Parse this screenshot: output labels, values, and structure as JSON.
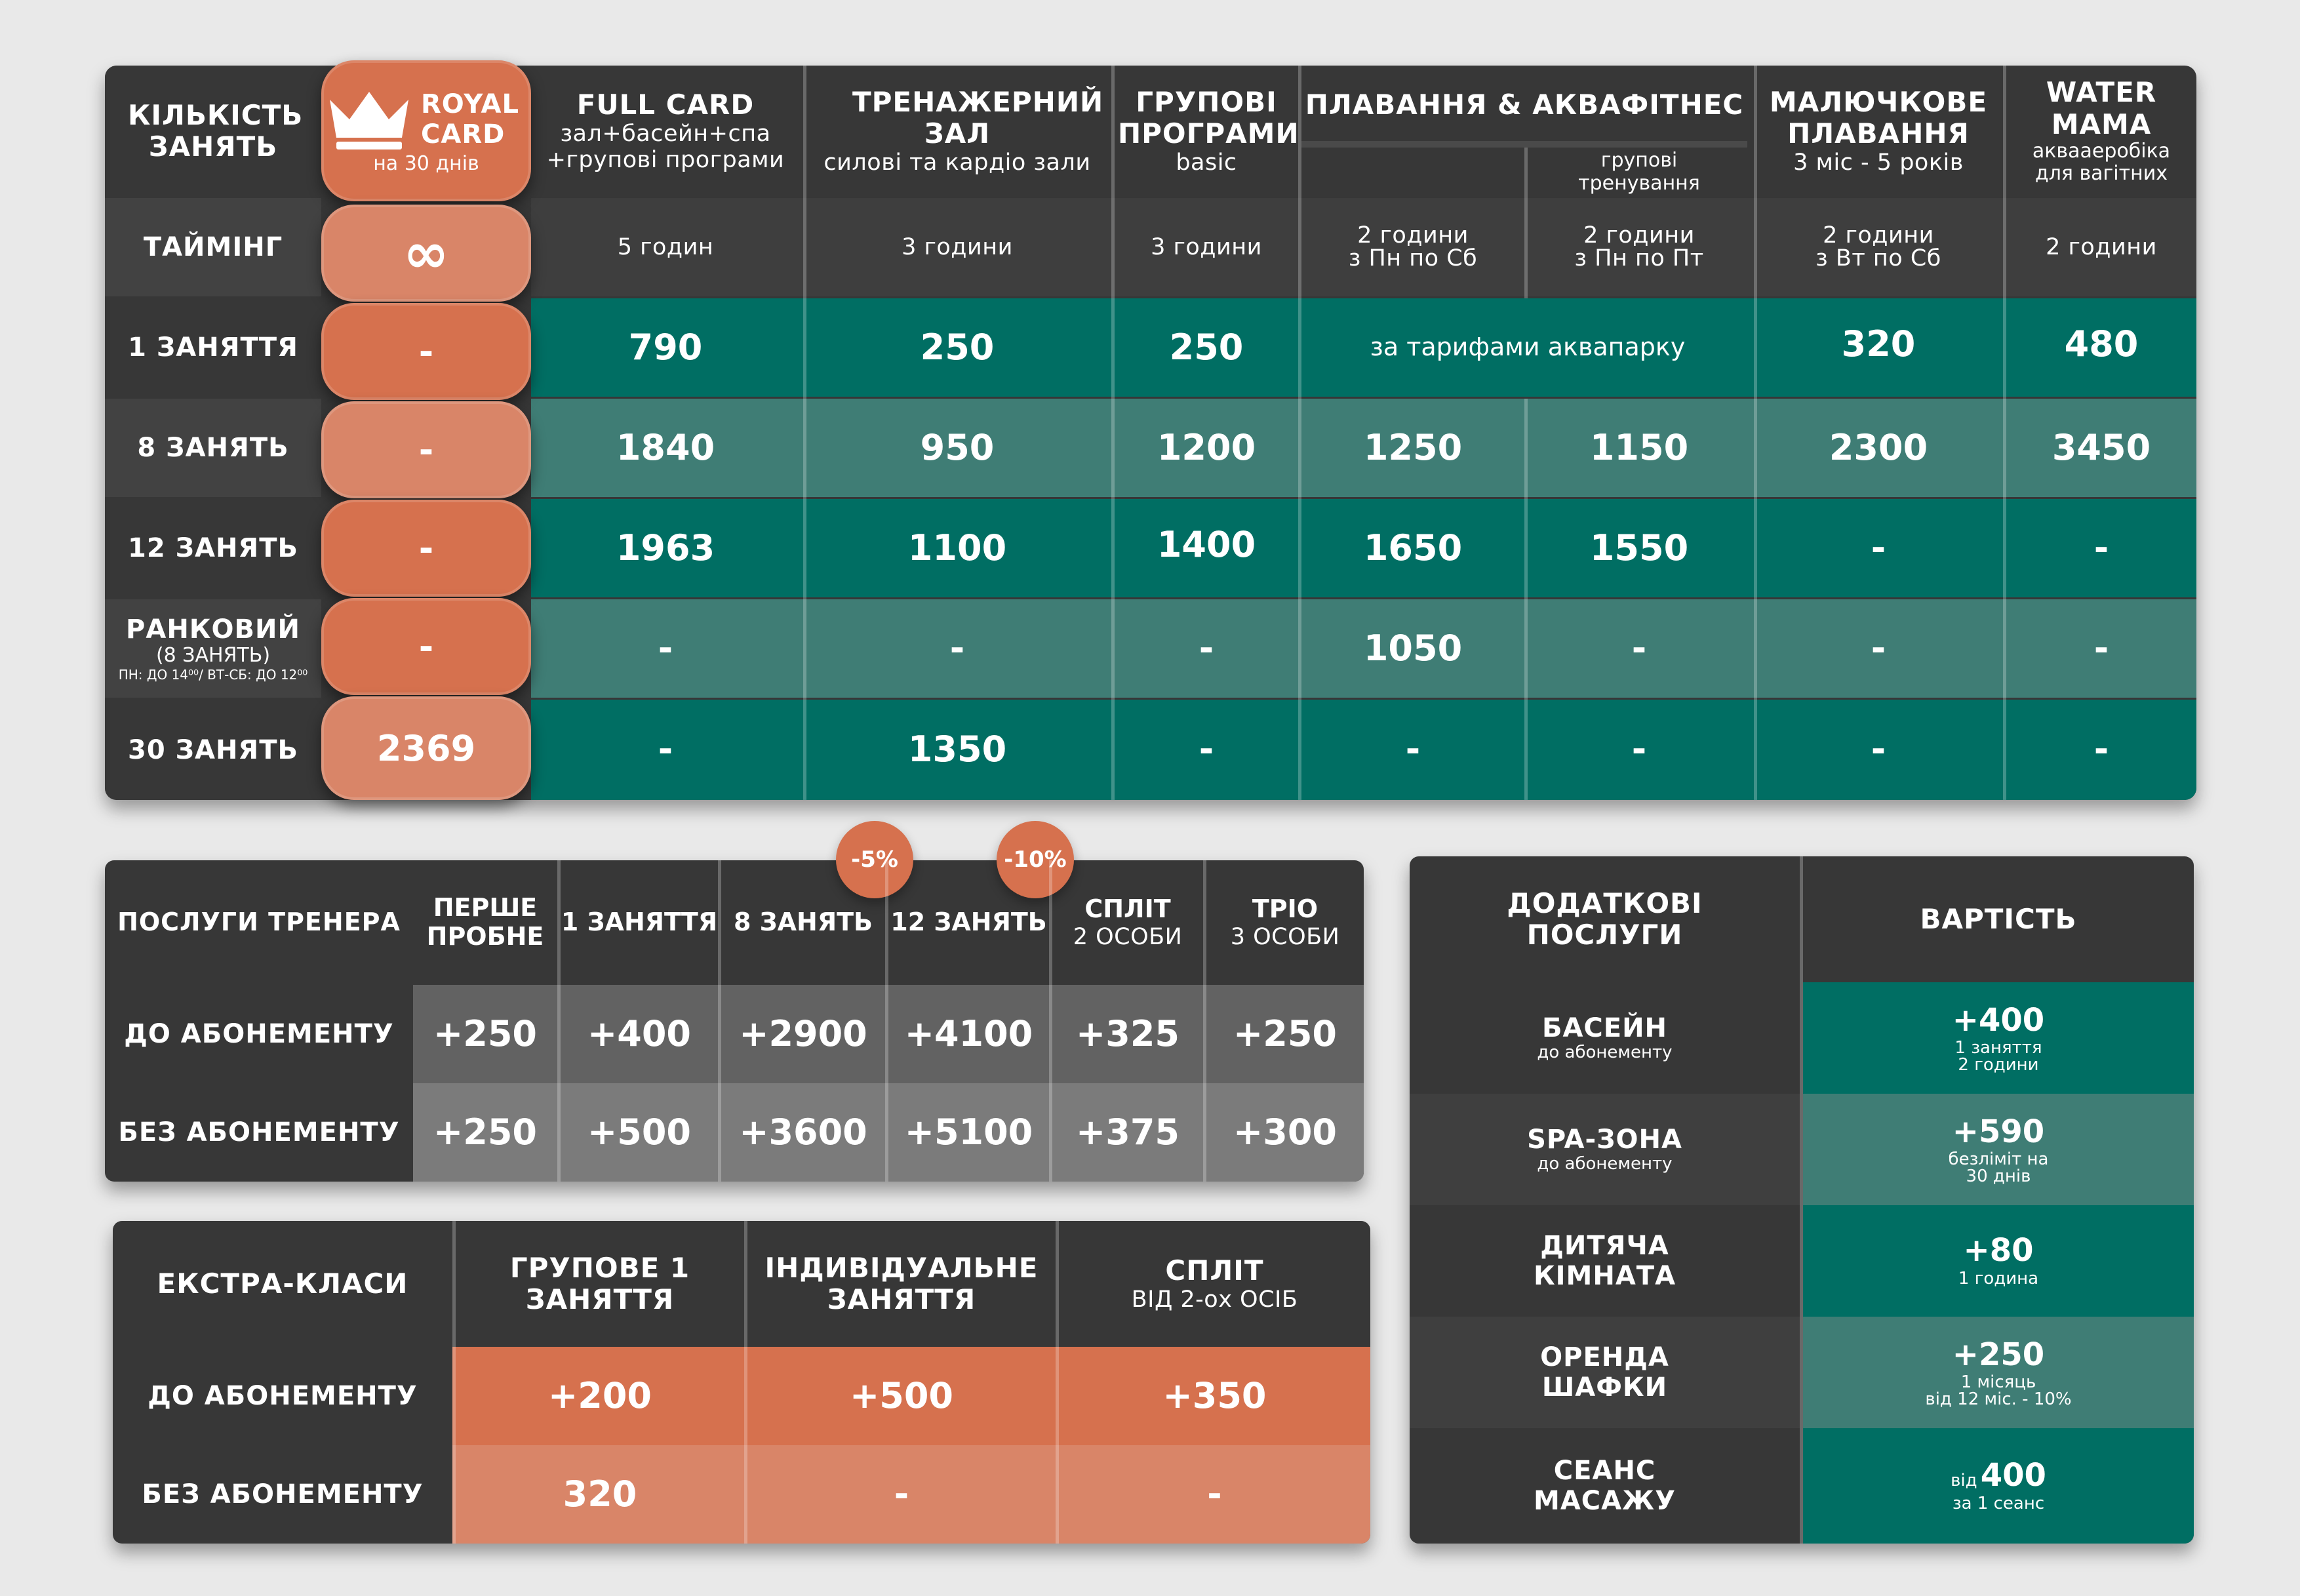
{
  "main_table": {
    "header": {
      "col0": "КІЛЬКІСТЬ ЗАНЯТЬ",
      "royal_title": "ROYAL CARD",
      "royal_sub": "на 30 днів",
      "full_title": "FULL CARD",
      "full_sub1": "зал+басейн+спа",
      "full_sub2": "+групові програми",
      "gym_title": "ТРЕНАЖЕРНИЙ ЗАЛ",
      "gym_sub": "силові та кардіо зали",
      "group_title": "ГРУПОВІ ПРОГРАМИ",
      "group_sub": "basic",
      "swim_title": "ПЛАВАННЯ & АКВАФІТНЕС",
      "swim_sub2": "групові тренування",
      "baby_title": "МАЛЮЧКОВЕ ПЛАВАННЯ",
      "baby_sub": "3 міс - 5 років",
      "water_title": "WATER MAMA",
      "water_sub": "аквааеробіка для вагітних"
    },
    "timing": {
      "label": "ТАЙМІНГ",
      "royal": "∞",
      "full": "5 годин",
      "gym": "3 години",
      "group": "3 години",
      "swim1": "2 години\nз Пн по Сб",
      "swim2": "2 години\nз Пн по Пт",
      "baby": "2 години\nз Вт по Сб",
      "water": "2 години"
    },
    "rows": [
      {
        "label": "1 ЗАНЯТТЯ",
        "royal": "-",
        "full": "790",
        "gym": "250",
        "group": "250",
        "swim_merged": "за тарифами аквапарку",
        "baby": "320",
        "water": "480"
      },
      {
        "label": "8 ЗАНЯТЬ",
        "royal": "-",
        "full": "1840",
        "gym": "950",
        "group": "1200",
        "swim1": "1250",
        "swim2": "1150",
        "baby": "2300",
        "water": "3450"
      },
      {
        "label": "12 ЗАНЯТЬ",
        "royal": "-",
        "full": "1963",
        "gym": "1100",
        "group": "1400",
        "swim1": "1650",
        "swim2": "1550",
        "baby": "-",
        "water": "-"
      },
      {
        "label": "РАНКОВИЙ",
        "label_sub": "(8 ЗАНЯТЬ)",
        "label_note": "ПН: ДО 14⁰⁰/ ВТ-СБ: ДО 12⁰⁰",
        "royal": "-",
        "full": "-",
        "gym": "-",
        "group": "-",
        "swim1": "1050",
        "swim2": "-",
        "baby": "-",
        "water": "-"
      },
      {
        "label": "30 ЗАНЯТЬ",
        "royal": "2369",
        "full": "-",
        "gym": "1350",
        "group": "-",
        "swim1": "-",
        "swim2": "-",
        "baby": "-",
        "water": "-"
      }
    ]
  },
  "trainer": {
    "title": "ПОСЛУГИ ТРЕНЕРА",
    "cols": [
      "ПЕРШЕ ПРОБНЕ",
      "1 ЗАНЯТТЯ",
      "8 ЗАНЯТЬ",
      "12 ЗАНЯТЬ",
      "СПЛІТ",
      "ТРІО"
    ],
    "col_subs": [
      "",
      "",
      "",
      "",
      "2 ОСОБИ",
      "3 ОСОБИ"
    ],
    "badges": [
      "-5%",
      "-10%"
    ],
    "rows": [
      {
        "label": "ДО АБОНЕМЕНТУ",
        "values": [
          "+250",
          "+400",
          "+2900",
          "+4100",
          "+325",
          "+250"
        ]
      },
      {
        "label": "БЕЗ АБОНЕМЕНТУ",
        "values": [
          "+250",
          "+500",
          "+3600",
          "+5100",
          "+375",
          "+300"
        ]
      }
    ]
  },
  "extra": {
    "title": "ЕКСТРА-КЛАСИ",
    "cols": [
      "ГРУПОВЕ 1 ЗАНЯТТЯ",
      "ІНДИВІДУАЛЬНЕ ЗАНЯТТЯ",
      "СПЛІТ"
    ],
    "col3_sub": "ВІД 2-ох ОСІБ",
    "rows": [
      {
        "label": "ДО АБОНЕМЕНТУ",
        "values": [
          "+200",
          "+500",
          "+350"
        ]
      },
      {
        "label": "БЕЗ АБОНЕМЕНТУ",
        "values": [
          "320",
          "-",
          "-"
        ]
      }
    ]
  },
  "additional": {
    "title": "ДОДАТКОВІ ПОСЛУГИ",
    "price_title": "ВАРТІСТЬ",
    "rows": [
      {
        "name": "БАСЕЙН",
        "name_sub": "до абонементу",
        "price": "+400",
        "price_sub": "1 заняття\n2 години"
      },
      {
        "name": "SPA-ЗОНА",
        "name_sub": "до абонементу",
        "price": "+590",
        "price_sub": "безліміт на\n30 днів"
      },
      {
        "name": "ДИТЯЧА КІМНАТА",
        "name_sub": "",
        "price": "+80",
        "price_sub": "1 година"
      },
      {
        "name": "ОРЕНДА ШАФКИ",
        "name_sub": "",
        "price": "+250",
        "price_sub": "1 місяць\nвід 12 міс. - 10%"
      },
      {
        "name": "СЕАНС МАСАЖУ",
        "name_sub": "",
        "price_prefix": "від",
        "price": "400",
        "price_sub": "за 1 сеанс"
      }
    ]
  },
  "colors": {
    "teal": "#006e63",
    "teal_light": "#3f7d75",
    "dark": "#373737",
    "orange": "#d6714e",
    "background": "#e9e9e9"
  }
}
